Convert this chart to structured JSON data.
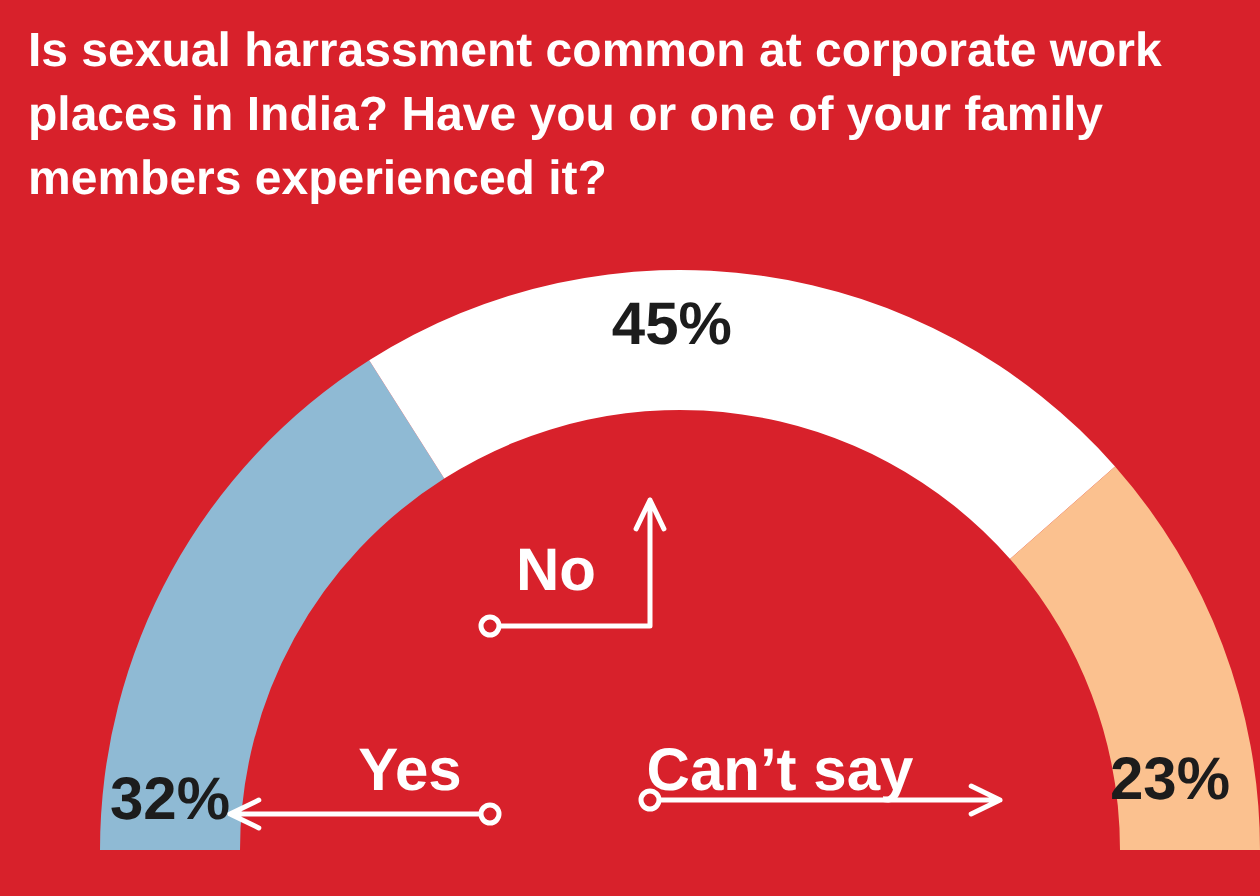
{
  "chart_data": {
    "type": "donut",
    "title": "Is sexual harrassment common at corporate work places in India? Have you or one of your family members experienced it?",
    "categories": [
      "Yes",
      "No",
      "Can’t say"
    ],
    "values": [
      32,
      45,
      23
    ],
    "value_labels": [
      "32%",
      "45%",
      "23%"
    ],
    "colors": [
      "#8fbad4",
      "#ffffff",
      "#fbc18f"
    ]
  }
}
